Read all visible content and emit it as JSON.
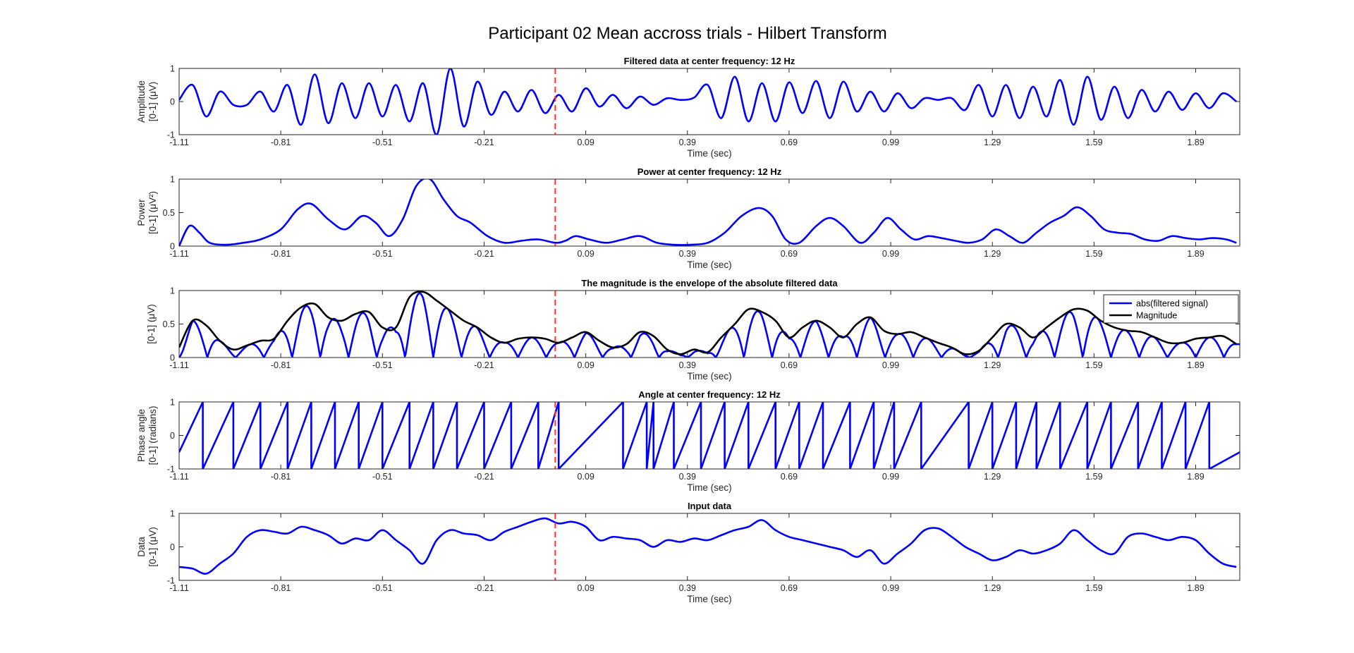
{
  "figure": {
    "suptitle": "Participant 02 Mean accross trials - Hilbert Transform"
  },
  "chart_data": [
    {
      "type": "line",
      "title": "Filtered data at center frequency: 12 Hz",
      "xlabel": "Time (sec)",
      "ylabel_lines": [
        "Amplitude",
        "[0-1] (μV)"
      ],
      "xlim": [
        -1.11,
        2.02
      ],
      "ylim": [
        -1,
        1
      ],
      "xticks": [
        "-1.11",
        "-0.81",
        "-0.51",
        "-0.21",
        "0.09",
        "0.39",
        "0.69",
        "0.99",
        "1.29",
        "1.59",
        "1.89"
      ],
      "yticks": [
        "-1",
        "0",
        "1"
      ],
      "marker_x": 0.0,
      "series": [
        {
          "color": "#0000ff",
          "x": [
            -1.11,
            -1.07,
            -1.03,
            -0.99,
            -0.95,
            -0.91,
            -0.87,
            -0.83,
            -0.79,
            -0.75,
            -0.71,
            -0.67,
            -0.63,
            -0.59,
            -0.55,
            -0.51,
            -0.47,
            -0.43,
            -0.39,
            -0.35,
            -0.31,
            -0.27,
            -0.23,
            -0.19,
            -0.15,
            -0.11,
            -0.07,
            -0.03,
            0.01,
            0.05,
            0.09,
            0.13,
            0.17,
            0.21,
            0.25,
            0.29,
            0.33,
            0.37,
            0.41,
            0.45,
            0.49,
            0.53,
            0.57,
            0.61,
            0.65,
            0.69,
            0.73,
            0.77,
            0.81,
            0.85,
            0.89,
            0.93,
            0.97,
            1.01,
            1.05,
            1.09,
            1.13,
            1.17,
            1.21,
            1.25,
            1.29,
            1.33,
            1.37,
            1.41,
            1.45,
            1.49,
            1.53,
            1.57,
            1.61,
            1.65,
            1.69,
            1.73,
            1.77,
            1.81,
            1.85,
            1.89,
            1.93,
            1.97,
            2.01
          ],
          "y": [
            0.05,
            0.5,
            -0.45,
            0.3,
            -0.1,
            -0.1,
            0.3,
            -0.3,
            0.5,
            -0.7,
            0.82,
            -0.65,
            0.55,
            -0.5,
            0.55,
            -0.45,
            0.5,
            -0.6,
            0.55,
            -1.0,
            1.0,
            -0.75,
            0.6,
            -0.4,
            0.3,
            -0.3,
            0.35,
            -0.35,
            0.2,
            -0.3,
            0.4,
            -0.15,
            0.2,
            -0.2,
            0.15,
            -0.1,
            0.1,
            0.05,
            0.12,
            0.5,
            -0.5,
            0.75,
            -0.6,
            0.55,
            -0.6,
            0.58,
            -0.35,
            0.62,
            -0.5,
            0.6,
            -0.3,
            0.3,
            -0.3,
            0.25,
            -0.2,
            0.1,
            0.05,
            0.1,
            -0.25,
            0.5,
            -0.45,
            0.5,
            -0.5,
            0.45,
            -0.45,
            0.65,
            -0.7,
            0.75,
            -0.55,
            0.45,
            -0.5,
            0.35,
            -0.3,
            0.3,
            -0.25,
            0.25,
            -0.2,
            0.25,
            0.0
          ]
        }
      ]
    },
    {
      "type": "line",
      "title": "Power at center frequency: 12 Hz",
      "xlabel": "Time (sec)",
      "ylabel_lines": [
        "Power",
        "[0-1] (μV²)"
      ],
      "xlim": [
        -1.11,
        2.02
      ],
      "ylim": [
        0,
        1
      ],
      "xticks": [
        "-1.11",
        "-0.81",
        "-0.51",
        "-0.21",
        "0.09",
        "0.39",
        "0.69",
        "0.99",
        "1.29",
        "1.59",
        "1.89"
      ],
      "yticks": [
        "0",
        "0.5",
        "1"
      ],
      "marker_x": 0.0,
      "series": [
        {
          "color": "#0000ff",
          "x": [
            -1.11,
            -1.08,
            -1.05,
            -1.02,
            -0.97,
            -0.92,
            -0.87,
            -0.81,
            -0.76,
            -0.72,
            -0.67,
            -0.62,
            -0.57,
            -0.53,
            -0.49,
            -0.45,
            -0.41,
            -0.37,
            -0.33,
            -0.29,
            -0.25,
            -0.2,
            -0.15,
            -0.1,
            -0.05,
            0.0,
            0.03,
            0.06,
            0.1,
            0.15,
            0.2,
            0.25,
            0.3,
            0.35,
            0.4,
            0.45,
            0.5,
            0.55,
            0.6,
            0.64,
            0.68,
            0.72,
            0.77,
            0.81,
            0.85,
            0.9,
            0.94,
            0.98,
            1.02,
            1.06,
            1.1,
            1.14,
            1.18,
            1.22,
            1.26,
            1.3,
            1.34,
            1.38,
            1.42,
            1.46,
            1.5,
            1.54,
            1.58,
            1.62,
            1.66,
            1.7,
            1.74,
            1.78,
            1.82,
            1.86,
            1.9,
            1.94,
            1.98,
            2.01
          ],
          "y": [
            0.0,
            0.3,
            0.2,
            0.05,
            0.02,
            0.05,
            0.1,
            0.25,
            0.55,
            0.63,
            0.4,
            0.25,
            0.45,
            0.35,
            0.15,
            0.4,
            0.9,
            1.0,
            0.7,
            0.45,
            0.35,
            0.15,
            0.05,
            0.08,
            0.1,
            0.05,
            0.08,
            0.15,
            0.1,
            0.05,
            0.1,
            0.15,
            0.05,
            0.02,
            0.02,
            0.05,
            0.2,
            0.45,
            0.57,
            0.45,
            0.1,
            0.05,
            0.3,
            0.42,
            0.3,
            0.05,
            0.2,
            0.42,
            0.25,
            0.1,
            0.15,
            0.12,
            0.08,
            0.05,
            0.1,
            0.25,
            0.15,
            0.05,
            0.2,
            0.35,
            0.45,
            0.58,
            0.45,
            0.25,
            0.2,
            0.18,
            0.1,
            0.08,
            0.15,
            0.12,
            0.1,
            0.12,
            0.1,
            0.05
          ]
        }
      ]
    },
    {
      "type": "line",
      "title": "The magnitude is the envelope of the absolute filtered data",
      "xlabel": "Time (sec)",
      "ylabel_lines": [
        "[0-1] (μV)"
      ],
      "xlim": [
        -1.11,
        2.02
      ],
      "ylim": [
        0,
        1
      ],
      "xticks": [
        "-1.11",
        "-0.81",
        "-0.51",
        "-0.21",
        "0.09",
        "0.39",
        "0.69",
        "0.99",
        "1.29",
        "1.59",
        "1.89"
      ],
      "yticks": [
        "0",
        "0.5",
        "1"
      ],
      "marker_x": 0.0,
      "legend": {
        "position": "top-right",
        "entries": [
          "abs(filtered signal)",
          "Magnitude"
        ]
      },
      "series": [
        {
          "name": "abs(filtered signal)",
          "color": "#0000ff",
          "oscillation_hz": 12,
          "envelope": "Magnitude"
        },
        {
          "name": "Magnitude",
          "color": "#000000",
          "x": [
            -1.11,
            -1.07,
            -1.03,
            -0.99,
            -0.95,
            -0.91,
            -0.87,
            -0.83,
            -0.79,
            -0.75,
            -0.71,
            -0.67,
            -0.63,
            -0.59,
            -0.55,
            -0.51,
            -0.47,
            -0.43,
            -0.39,
            -0.35,
            -0.31,
            -0.27,
            -0.23,
            -0.19,
            -0.15,
            -0.11,
            -0.07,
            -0.03,
            0.01,
            0.05,
            0.09,
            0.13,
            0.17,
            0.21,
            0.25,
            0.29,
            0.33,
            0.37,
            0.41,
            0.45,
            0.49,
            0.53,
            0.57,
            0.61,
            0.65,
            0.69,
            0.73,
            0.77,
            0.81,
            0.85,
            0.89,
            0.93,
            0.97,
            1.01,
            1.05,
            1.09,
            1.13,
            1.17,
            1.21,
            1.25,
            1.29,
            1.33,
            1.37,
            1.41,
            1.45,
            1.49,
            1.53,
            1.57,
            1.61,
            1.65,
            1.69,
            1.73,
            1.77,
            1.81,
            1.85,
            1.89,
            1.93,
            1.97,
            2.01
          ],
          "y": [
            0.15,
            0.55,
            0.48,
            0.25,
            0.12,
            0.18,
            0.25,
            0.28,
            0.55,
            0.75,
            0.8,
            0.6,
            0.55,
            0.65,
            0.68,
            0.45,
            0.45,
            0.9,
            0.98,
            0.85,
            0.7,
            0.55,
            0.45,
            0.3,
            0.22,
            0.28,
            0.3,
            0.28,
            0.22,
            0.3,
            0.38,
            0.25,
            0.15,
            0.2,
            0.38,
            0.32,
            0.12,
            0.05,
            0.12,
            0.08,
            0.3,
            0.5,
            0.72,
            0.68,
            0.55,
            0.3,
            0.45,
            0.55,
            0.45,
            0.3,
            0.5,
            0.6,
            0.4,
            0.35,
            0.38,
            0.3,
            0.22,
            0.15,
            0.05,
            0.1,
            0.3,
            0.5,
            0.45,
            0.3,
            0.45,
            0.6,
            0.72,
            0.7,
            0.55,
            0.45,
            0.4,
            0.38,
            0.3,
            0.22,
            0.22,
            0.28,
            0.3,
            0.32,
            0.2
          ]
        }
      ]
    },
    {
      "type": "line",
      "title": "Angle at center frequency: 12 Hz",
      "xlabel": "Time (sec)",
      "ylabel_lines": [
        "Phase angle",
        "[0-1] (radians)"
      ],
      "xlim": [
        -1.11,
        2.02
      ],
      "ylim": [
        -1,
        1
      ],
      "xticks": [
        "-1.11",
        "-0.81",
        "-0.51",
        "-0.21",
        "0.09",
        "0.39",
        "0.69",
        "0.99",
        "1.29",
        "1.59",
        "1.89"
      ],
      "yticks": [
        "-1",
        "0",
        "1"
      ],
      "marker_x": 0.0,
      "series": [
        {
          "color": "#0000ff",
          "type": "sawtooth",
          "wrap_times": [
            -1.04,
            -0.95,
            -0.87,
            -0.79,
            -0.72,
            -0.65,
            -0.58,
            -0.51,
            -0.43,
            -0.36,
            -0.29,
            -0.21,
            -0.13,
            -0.05,
            0.01,
            0.2,
            0.27,
            0.29,
            0.35,
            0.43,
            0.5,
            0.57,
            0.65,
            0.72,
            0.79,
            0.87,
            0.94,
            1.0,
            1.08,
            1.22,
            1.29,
            1.36,
            1.42,
            1.49,
            1.57,
            1.64,
            1.72,
            1.79,
            1.86,
            1.93
          ],
          "y_start": -0.5,
          "y_end": -0.5
        }
      ]
    },
    {
      "type": "line",
      "title": "Input data",
      "xlabel": "Time (sec)",
      "ylabel_lines": [
        "Data",
        "[0-1] (μV)"
      ],
      "xlim": [
        -1.11,
        2.02
      ],
      "ylim": [
        -1,
        1
      ],
      "xticks": [
        "-1.11",
        "-0.81",
        "-0.51",
        "-0.21",
        "0.09",
        "0.39",
        "0.69",
        "0.99",
        "1.29",
        "1.59",
        "1.89"
      ],
      "yticks": [
        "-1",
        "0",
        "1"
      ],
      "marker_x": 0.0,
      "series": [
        {
          "color": "#0000ff",
          "x": [
            -1.11,
            -1.07,
            -1.03,
            -0.99,
            -0.95,
            -0.91,
            -0.87,
            -0.83,
            -0.79,
            -0.75,
            -0.71,
            -0.67,
            -0.63,
            -0.59,
            -0.55,
            -0.51,
            -0.47,
            -0.43,
            -0.39,
            -0.35,
            -0.31,
            -0.27,
            -0.23,
            -0.19,
            -0.15,
            -0.11,
            -0.07,
            -0.03,
            0.01,
            0.05,
            0.09,
            0.13,
            0.17,
            0.21,
            0.25,
            0.29,
            0.33,
            0.37,
            0.41,
            0.45,
            0.49,
            0.53,
            0.57,
            0.61,
            0.65,
            0.69,
            0.73,
            0.77,
            0.81,
            0.85,
            0.89,
            0.93,
            0.97,
            1.01,
            1.05,
            1.09,
            1.13,
            1.17,
            1.21,
            1.25,
            1.29,
            1.33,
            1.37,
            1.41,
            1.45,
            1.49,
            1.53,
            1.57,
            1.61,
            1.65,
            1.69,
            1.73,
            1.77,
            1.81,
            1.85,
            1.89,
            1.93,
            1.97,
            2.01
          ],
          "y": [
            -0.6,
            -0.65,
            -0.8,
            -0.5,
            -0.2,
            0.3,
            0.5,
            0.45,
            0.4,
            0.6,
            0.5,
            0.35,
            0.1,
            0.25,
            0.2,
            0.5,
            0.2,
            -0.1,
            -0.5,
            0.2,
            0.5,
            0.4,
            0.35,
            0.2,
            0.45,
            0.6,
            0.75,
            0.85,
            0.7,
            0.75,
            0.6,
            0.2,
            0.3,
            0.25,
            0.2,
            0.0,
            0.2,
            0.15,
            0.25,
            0.2,
            0.35,
            0.5,
            0.6,
            0.8,
            0.5,
            0.3,
            0.2,
            0.1,
            0.0,
            -0.1,
            -0.3,
            -0.1,
            -0.5,
            -0.2,
            0.1,
            0.5,
            0.55,
            0.3,
            0.0,
            -0.2,
            -0.4,
            -0.3,
            -0.1,
            -0.2,
            -0.1,
            0.1,
            0.5,
            0.2,
            -0.1,
            -0.2,
            0.3,
            0.4,
            0.3,
            0.2,
            0.3,
            0.2,
            -0.2,
            -0.5,
            -0.6
          ]
        }
      ]
    }
  ]
}
